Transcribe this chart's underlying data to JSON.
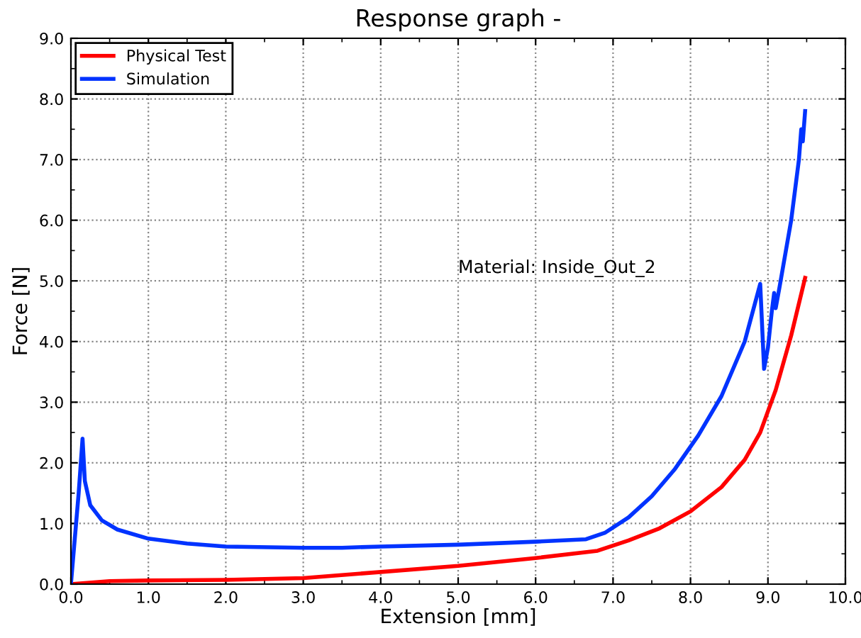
{
  "chart_data": {
    "type": "line",
    "title": "Response graph -",
    "xlabel": "Extension [mm]",
    "ylabel": "Force [N]",
    "annotations": [
      "Material: Inside_Out_2"
    ],
    "xlim": [
      0,
      10
    ],
    "ylim": [
      0,
      9
    ],
    "xticks": [
      {
        "value": 0,
        "label": "0.0"
      },
      {
        "value": 1,
        "label": "1.0"
      },
      {
        "value": 2,
        "label": "2.0"
      },
      {
        "value": 3,
        "label": "3.0"
      },
      {
        "value": 4,
        "label": "4.0"
      },
      {
        "value": 5,
        "label": "5.0"
      },
      {
        "value": 6,
        "label": "6.0"
      },
      {
        "value": 7,
        "label": "7.0"
      },
      {
        "value": 8,
        "label": "8.0"
      },
      {
        "value": 9,
        "label": "9.0"
      },
      {
        "value": 10,
        "label": "10.0"
      }
    ],
    "yticks": [
      {
        "value": 0,
        "label": "0.0"
      },
      {
        "value": 1,
        "label": "1.0"
      },
      {
        "value": 2,
        "label": "2.0"
      },
      {
        "value": 3,
        "label": "3.0"
      },
      {
        "value": 4,
        "label": "4.0"
      },
      {
        "value": 5,
        "label": "5.0"
      },
      {
        "value": 6,
        "label": "6.0"
      },
      {
        "value": 7,
        "label": "7.0"
      },
      {
        "value": 8,
        "label": "8.0"
      },
      {
        "value": 9,
        "label": "9.0"
      }
    ],
    "grid": true,
    "legend": "top left",
    "line_style": "solid",
    "marker": "none",
    "series": [
      {
        "name": "Physical Test",
        "color": "#ff0000",
        "x": [
          0,
          0.5,
          1,
          2,
          3,
          4,
          5,
          6,
          6.8,
          7.2,
          7.6,
          8.0,
          8.4,
          8.7,
          8.9,
          9.1,
          9.3,
          9.48
        ],
        "values": [
          0,
          0.05,
          0.06,
          0.07,
          0.1,
          0.2,
          0.3,
          0.43,
          0.55,
          0.72,
          0.92,
          1.2,
          1.6,
          2.05,
          2.5,
          3.2,
          4.1,
          5.05
        ]
      },
      {
        "name": "Simulation",
        "color": "#0033ff",
        "x": [
          0,
          0.1,
          0.15,
          0.18,
          0.25,
          0.4,
          0.6,
          1.0,
          1.5,
          2.0,
          3.0,
          3.5,
          4.0,
          5.0,
          6.0,
          6.65,
          6.9,
          7.2,
          7.5,
          7.8,
          8.1,
          8.4,
          8.7,
          8.9,
          8.95,
          9.0,
          9.05,
          9.08,
          9.1,
          9.15,
          9.3,
          9.4,
          9.43,
          9.45,
          9.48
        ],
        "values": [
          0,
          1.5,
          2.4,
          1.7,
          1.3,
          1.05,
          0.9,
          0.75,
          0.67,
          0.62,
          0.6,
          0.6,
          0.62,
          0.65,
          0.7,
          0.74,
          0.85,
          1.1,
          1.45,
          1.9,
          2.45,
          3.1,
          4.0,
          4.95,
          3.55,
          3.9,
          4.5,
          4.8,
          4.55,
          4.9,
          6.0,
          7.0,
          7.5,
          7.3,
          7.8
        ]
      }
    ]
  }
}
